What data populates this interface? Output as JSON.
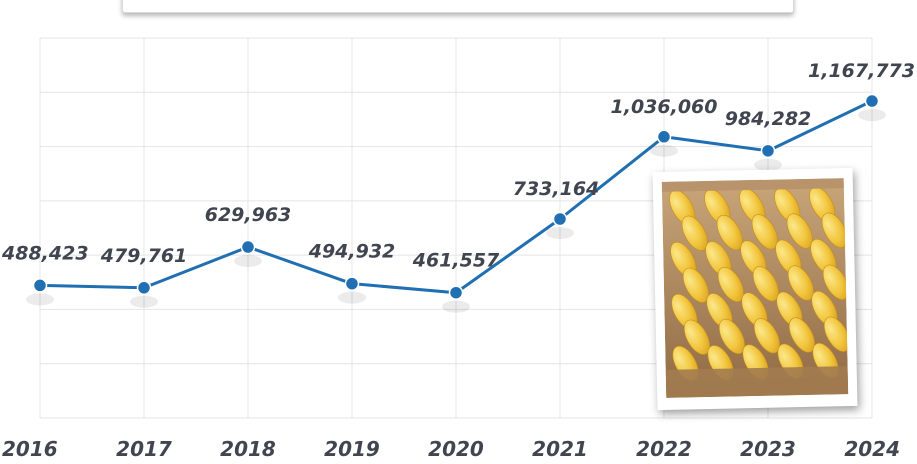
{
  "chart_data": {
    "type": "line",
    "x": [
      "2016",
      "2017",
      "2018",
      "2019",
      "2020",
      "2021",
      "2022",
      "2023",
      "2024"
    ],
    "values": [
      488423,
      479761,
      629963,
      494932,
      461557,
      733164,
      1036060,
      984282,
      1167773
    ],
    "data_labels": [
      "488,423",
      "479,761",
      "629,963",
      "494,932",
      "461,557",
      "733,164",
      "1,036,060",
      "984,282",
      "1,167,773"
    ],
    "ylim": [
      0,
      1400000
    ],
    "grid": true,
    "line_color": "#1f6fb2",
    "marker_color": "#1f6fb2",
    "label_color": "#404550"
  },
  "photo": {
    "icon": "mango-crate-photo-icon",
    "fruit_color": "#f2c53d",
    "crate_color": "#b08a5e"
  }
}
